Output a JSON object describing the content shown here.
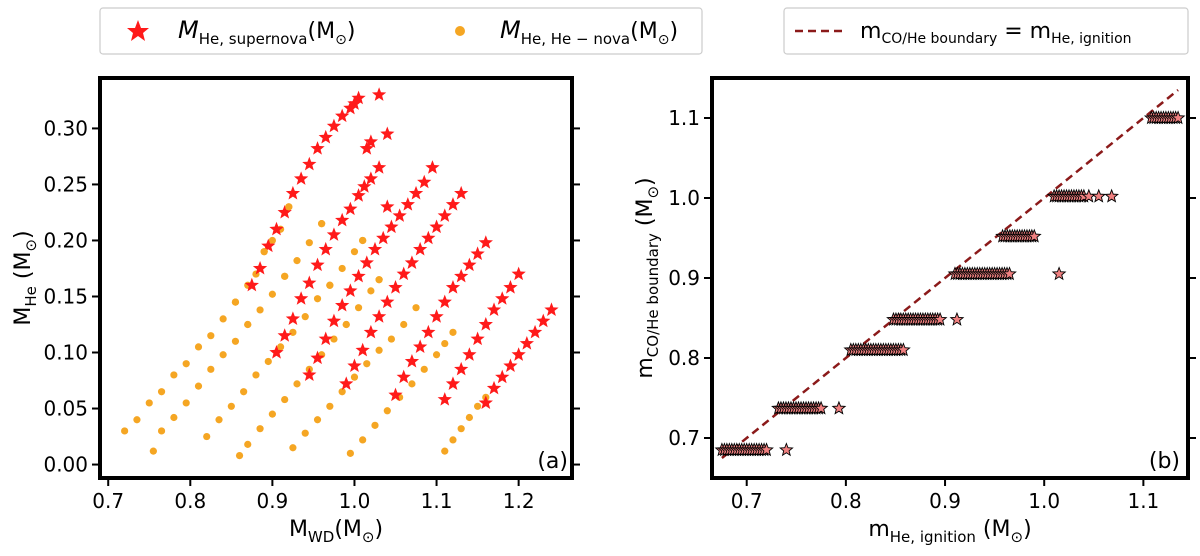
{
  "chart_data": [
    {
      "type": "scatter",
      "panel_label": "(a)",
      "xlabel": "M_WD(M_⊙)",
      "ylabel": "M_He (M_⊙)",
      "xlim": [
        0.69,
        1.265
      ],
      "ylim": [
        -0.012,
        0.345
      ],
      "xticks": [
        0.7,
        0.8,
        0.9,
        1.0,
        1.1,
        1.2
      ],
      "xtick_labels": [
        "0.7",
        "0.8",
        "0.9",
        "1.0",
        "1.1",
        "1.2"
      ],
      "yticks": [
        0.0,
        0.05,
        0.1,
        0.15,
        0.2,
        0.25,
        0.3
      ],
      "ytick_labels": [
        "0.00",
        "0.05",
        "0.10",
        "0.15",
        "0.20",
        "0.25",
        "0.30"
      ],
      "series": [
        {
          "name": "M_He, supernova(M_⊙)",
          "marker": "star",
          "color": "#ff1a1a",
          "points": [
            [
              0.875,
              0.16
            ],
            [
              0.885,
              0.175
            ],
            [
              0.895,
              0.195
            ],
            [
              0.905,
              0.21
            ],
            [
              0.915,
              0.225
            ],
            [
              0.925,
              0.242
            ],
            [
              0.935,
              0.255
            ],
            [
              0.945,
              0.268
            ],
            [
              0.955,
              0.282
            ],
            [
              0.965,
              0.292
            ],
            [
              0.975,
              0.302
            ],
            [
              0.985,
              0.311
            ],
            [
              0.995,
              0.318
            ],
            [
              1.0,
              0.322
            ],
            [
              1.005,
              0.327
            ],
            [
              1.015,
              0.282
            ],
            [
              1.02,
              0.288
            ],
            [
              1.03,
              0.33
            ],
            [
              1.04,
              0.295
            ],
            [
              0.905,
              0.1
            ],
            [
              0.915,
              0.115
            ],
            [
              0.925,
              0.13
            ],
            [
              0.935,
              0.148
            ],
            [
              0.945,
              0.162
            ],
            [
              0.955,
              0.178
            ],
            [
              0.965,
              0.192
            ],
            [
              0.975,
              0.205
            ],
            [
              0.985,
              0.218
            ],
            [
              0.995,
              0.228
            ],
            [
              1.005,
              0.24
            ],
            [
              1.012,
              0.248
            ],
            [
              1.02,
              0.255
            ],
            [
              1.03,
              0.265
            ],
            [
              1.04,
              0.23
            ],
            [
              0.945,
              0.08
            ],
            [
              0.955,
              0.095
            ],
            [
              0.965,
              0.112
            ],
            [
              0.975,
              0.128
            ],
            [
              0.985,
              0.142
            ],
            [
              0.995,
              0.155
            ],
            [
              1.005,
              0.168
            ],
            [
              1.015,
              0.18
            ],
            [
              1.025,
              0.192
            ],
            [
              1.035,
              0.202
            ],
            [
              1.045,
              0.212
            ],
            [
              1.055,
              0.222
            ],
            [
              1.065,
              0.232
            ],
            [
              1.075,
              0.242
            ],
            [
              1.085,
              0.252
            ],
            [
              1.095,
              0.265
            ],
            [
              0.99,
              0.072
            ],
            [
              1.0,
              0.088
            ],
            [
              1.01,
              0.102
            ],
            [
              1.02,
              0.118
            ],
            [
              1.03,
              0.132
            ],
            [
              1.04,
              0.145
            ],
            [
              1.05,
              0.158
            ],
            [
              1.06,
              0.17
            ],
            [
              1.07,
              0.18
            ],
            [
              1.08,
              0.192
            ],
            [
              1.09,
              0.202
            ],
            [
              1.1,
              0.212
            ],
            [
              1.11,
              0.222
            ],
            [
              1.12,
              0.232
            ],
            [
              1.13,
              0.242
            ],
            [
              1.05,
              0.062
            ],
            [
              1.06,
              0.078
            ],
            [
              1.07,
              0.092
            ],
            [
              1.08,
              0.105
            ],
            [
              1.09,
              0.118
            ],
            [
              1.1,
              0.132
            ],
            [
              1.11,
              0.145
            ],
            [
              1.12,
              0.158
            ],
            [
              1.13,
              0.168
            ],
            [
              1.14,
              0.178
            ],
            [
              1.15,
              0.188
            ],
            [
              1.16,
              0.198
            ],
            [
              1.11,
              0.058
            ],
            [
              1.12,
              0.072
            ],
            [
              1.13,
              0.085
            ],
            [
              1.14,
              0.098
            ],
            [
              1.15,
              0.112
            ],
            [
              1.16,
              0.125
            ],
            [
              1.17,
              0.138
            ],
            [
              1.18,
              0.148
            ],
            [
              1.19,
              0.158
            ],
            [
              1.2,
              0.17
            ],
            [
              1.16,
              0.055
            ],
            [
              1.17,
              0.068
            ],
            [
              1.18,
              0.078
            ],
            [
              1.19,
              0.088
            ],
            [
              1.2,
              0.098
            ],
            [
              1.21,
              0.108
            ],
            [
              1.22,
              0.118
            ],
            [
              1.23,
              0.128
            ],
            [
              1.24,
              0.138
            ]
          ]
        },
        {
          "name": "M_He, He−nova(M_⊙)",
          "marker": "circle",
          "color": "#f5a623",
          "points": [
            [
              0.72,
              0.03
            ],
            [
              0.735,
              0.04
            ],
            [
              0.75,
              0.055
            ],
            [
              0.765,
              0.065
            ],
            [
              0.78,
              0.08
            ],
            [
              0.795,
              0.09
            ],
            [
              0.81,
              0.105
            ],
            [
              0.825,
              0.115
            ],
            [
              0.84,
              0.13
            ],
            [
              0.855,
              0.145
            ],
            [
              0.87,
              0.16
            ],
            [
              0.88,
              0.17
            ],
            [
              0.89,
              0.19
            ],
            [
              0.9,
              0.2
            ],
            [
              0.91,
              0.21
            ],
            [
              0.92,
              0.23
            ],
            [
              0.755,
              0.012
            ],
            [
              0.765,
              0.03
            ],
            [
              0.78,
              0.042
            ],
            [
              0.795,
              0.055
            ],
            [
              0.81,
              0.07
            ],
            [
              0.825,
              0.085
            ],
            [
              0.84,
              0.098
            ],
            [
              0.855,
              0.11
            ],
            [
              0.87,
              0.125
            ],
            [
              0.885,
              0.138
            ],
            [
              0.9,
              0.152
            ],
            [
              0.915,
              0.168
            ],
            [
              0.93,
              0.182
            ],
            [
              0.945,
              0.198
            ],
            [
              0.96,
              0.215
            ],
            [
              0.86,
              0.008
            ],
            [
              0.82,
              0.025
            ],
            [
              0.835,
              0.04
            ],
            [
              0.85,
              0.052
            ],
            [
              0.865,
              0.065
            ],
            [
              0.88,
              0.08
            ],
            [
              0.895,
              0.092
            ],
            [
              0.91,
              0.105
            ],
            [
              0.925,
              0.118
            ],
            [
              0.94,
              0.132
            ],
            [
              0.955,
              0.148
            ],
            [
              0.97,
              0.16
            ],
            [
              0.985,
              0.175
            ],
            [
              1.0,
              0.19
            ],
            [
              1.01,
              0.2
            ],
            [
              0.87,
              0.018
            ],
            [
              0.885,
              0.032
            ],
            [
              0.9,
              0.045
            ],
            [
              0.915,
              0.058
            ],
            [
              0.93,
              0.072
            ],
            [
              0.945,
              0.085
            ],
            [
              0.96,
              0.098
            ],
            [
              0.975,
              0.112
            ],
            [
              0.99,
              0.125
            ],
            [
              1.005,
              0.14
            ],
            [
              1.02,
              0.155
            ],
            [
              1.03,
              0.165
            ],
            [
              0.925,
              0.015
            ],
            [
              0.94,
              0.028
            ],
            [
              0.955,
              0.04
            ],
            [
              0.97,
              0.052
            ],
            [
              0.985,
              0.065
            ],
            [
              1.0,
              0.078
            ],
            [
              1.015,
              0.09
            ],
            [
              1.03,
              0.102
            ],
            [
              1.045,
              0.112
            ],
            [
              1.06,
              0.125
            ],
            [
              1.075,
              0.14
            ],
            [
              0.995,
              0.01
            ],
            [
              1.01,
              0.022
            ],
            [
              1.025,
              0.035
            ],
            [
              1.04,
              0.048
            ],
            [
              1.055,
              0.06
            ],
            [
              1.07,
              0.072
            ],
            [
              1.085,
              0.085
            ],
            [
              1.1,
              0.098
            ],
            [
              1.11,
              0.108
            ],
            [
              1.12,
              0.118
            ],
            [
              1.11,
              0.012
            ],
            [
              1.12,
              0.022
            ],
            [
              1.13,
              0.032
            ],
            [
              1.14,
              0.042
            ],
            [
              1.15,
              0.052
            ],
            [
              1.16,
              0.06
            ],
            [
              1.2,
              0.098
            ]
          ]
        }
      ]
    },
    {
      "type": "scatter",
      "panel_label": "(b)",
      "xlabel": "m_He, ignition (M_⊙)",
      "ylabel": "m_CO/He boundary (M_⊙)",
      "xlim": [
        0.665,
        1.145
      ],
      "ylim": [
        0.65,
        1.15
      ],
      "xticks": [
        0.7,
        0.8,
        0.9,
        1.0,
        1.1
      ],
      "xtick_labels": [
        "0.7",
        "0.8",
        "0.9",
        "1.0",
        "1.1"
      ],
      "yticks": [
        0.7,
        0.8,
        0.9,
        1.0,
        1.1
      ],
      "ytick_labels": [
        "0.7",
        "0.8",
        "0.9",
        "1.0",
        "1.1"
      ],
      "reference_line": {
        "name": "m_CO/He boundary = m_He, ignition",
        "style": "dashed",
        "color": "#8b1a1a",
        "x": [
          0.675,
          1.135
        ],
        "y": [
          0.675,
          1.135
        ]
      },
      "clusters": [
        {
          "y": 0.685,
          "x_min": 0.675,
          "x_max": 0.72,
          "outliers": [
            0.74
          ]
        },
        {
          "y": 0.737,
          "x_min": 0.732,
          "x_max": 0.775,
          "outliers": [
            0.793
          ]
        },
        {
          "y": 0.81,
          "x_min": 0.805,
          "x_max": 0.858,
          "outliers": []
        },
        {
          "y": 0.848,
          "x_min": 0.848,
          "x_max": 0.895,
          "outliers": [
            0.912
          ]
        },
        {
          "y": 0.905,
          "x_min": 0.91,
          "x_max": 0.965,
          "outliers": [
            1.015
          ]
        },
        {
          "y": 0.952,
          "x_min": 0.958,
          "x_max": 0.99,
          "outliers": []
        },
        {
          "y": 1.002,
          "x_min": 1.01,
          "x_max": 1.04,
          "outliers": [
            1.045,
            1.055,
            1.068
          ]
        },
        {
          "y": 1.1,
          "x_min": 1.108,
          "x_max": 1.135,
          "outliers": []
        }
      ],
      "marker": "star",
      "fill_color": "#f08080",
      "edge_color": "#000000"
    }
  ],
  "legend_left": {
    "entries": [
      {
        "label_main": "M",
        "label_sub": "He, supernova",
        "label_tail": "(M",
        "label_sun": "⊙",
        "label_close": ")"
      },
      {
        "label_main": "M",
        "label_sub": "He, He − nova",
        "label_tail": "(M",
        "label_sun": "⊙",
        "label_close": ")"
      }
    ]
  },
  "legend_right": {
    "lhs_main": "m",
    "lhs_sub": "CO/He boundary",
    "eq": " = m",
    "rhs_sub": "He, ignition"
  },
  "axes_text": {
    "a_xlabel_main": "M",
    "a_xlabel_sub": "WD",
    "a_xlabel_tail": "(M",
    "a_xlabel_sun": "⊙",
    "a_xlabel_close": ")",
    "a_ylabel_main": "M",
    "a_ylabel_sub": "He",
    "a_ylabel_tail": " (M",
    "a_ylabel_sun": "⊙",
    "a_ylabel_close": ")",
    "b_xlabel_main": "m",
    "b_xlabel_sub": "He, ignition",
    "b_xlabel_tail": " (M",
    "b_xlabel_sun": "⊙",
    "b_xlabel_close": ")",
    "b_ylabel_main": "m",
    "b_ylabel_sub": "CO/He boundary",
    "b_ylabel_tail": " (M",
    "b_ylabel_sun": "⊙",
    "b_ylabel_close": ")"
  }
}
